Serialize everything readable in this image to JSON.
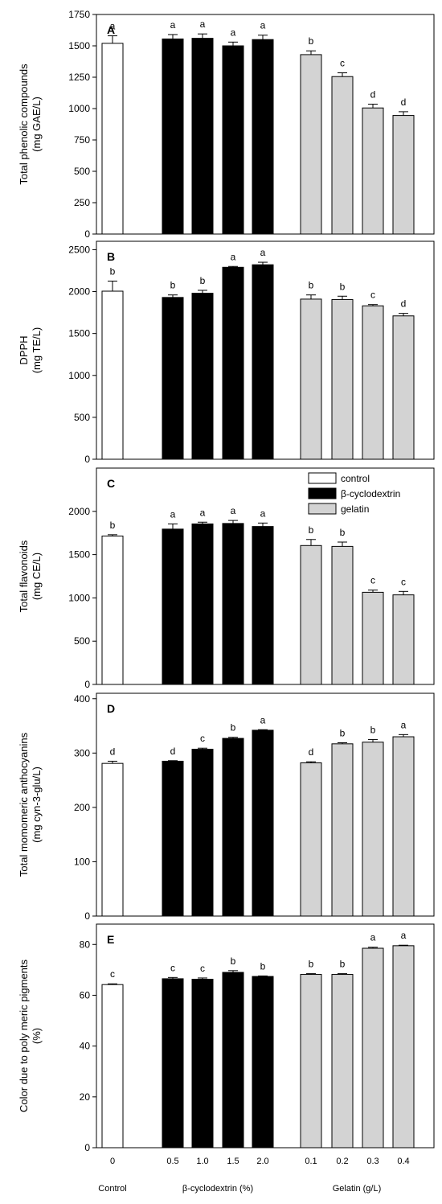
{
  "chart_data": [
    {
      "type": "bar",
      "panel_letter": "A",
      "ylabel": [
        "Total phenolic compounds",
        "(mg GAE/L)"
      ],
      "ylim": [
        0,
        1750
      ],
      "yticks": [
        0,
        250,
        500,
        750,
        1000,
        1250,
        1500,
        1750
      ],
      "values": [
        1520,
        1555,
        1560,
        1500,
        1550,
        1430,
        1255,
        1005,
        945
      ],
      "errors": [
        60,
        35,
        35,
        30,
        35,
        30,
        30,
        30,
        30
      ],
      "letters": [
        "a",
        "a",
        "a",
        "a",
        "a",
        "b",
        "c",
        "d",
        "d"
      ]
    },
    {
      "type": "bar",
      "panel_letter": "B",
      "ylabel": [
        "DPPH",
        "(mg TE/L)"
      ],
      "ylim": [
        0,
        2600
      ],
      "yticks": [
        0,
        500,
        1000,
        1500,
        2000,
        2500
      ],
      "values": [
        2005,
        1930,
        1980,
        2290,
        2320,
        1910,
        1905,
        1830,
        1710
      ],
      "errors": [
        120,
        30,
        35,
        10,
        30,
        50,
        40,
        15,
        30
      ],
      "letters": [
        "b",
        "b",
        "b",
        "a",
        "a",
        "b",
        "b",
        "c",
        "d"
      ]
    },
    {
      "type": "bar",
      "panel_letter": "C",
      "ylabel": [
        "Total flavonoids",
        "(mg CE/L)"
      ],
      "ylim": [
        0,
        2500
      ],
      "yticks": [
        0,
        500,
        1000,
        1500,
        2000
      ],
      "values": [
        1715,
        1795,
        1855,
        1860,
        1825,
        1605,
        1595,
        1065,
        1035
      ],
      "errors": [
        15,
        60,
        20,
        35,
        40,
        70,
        50,
        25,
        40
      ],
      "letters": [
        "b",
        "a",
        "a",
        "a",
        "a",
        "b",
        "b",
        "c",
        "c"
      ],
      "legend": [
        {
          "label": "control",
          "color": "#ffffff"
        },
        {
          "label": "β-cyclodextrin",
          "color": "#000000"
        },
        {
          "label": "gelatin",
          "color": "#d3d3d3"
        }
      ]
    },
    {
      "type": "bar",
      "panel_letter": "D",
      "ylabel": [
        "Total  momomeric  anthocyanins",
        "(mg cyn-3-glu/L)"
      ],
      "ylim": [
        0,
        410
      ],
      "yticks": [
        0,
        100,
        200,
        300,
        400
      ],
      "values": [
        281,
        285,
        307,
        327,
        342,
        282,
        317,
        320,
        330
      ],
      "errors": [
        4,
        1,
        2,
        2,
        1,
        2,
        2,
        5,
        4
      ],
      "letters": [
        "d",
        "d",
        "c",
        "b",
        "a",
        "d",
        "b",
        "b",
        "a"
      ]
    },
    {
      "type": "bar",
      "panel_letter": "E",
      "ylabel": [
        "Color due to poly meric pigments",
        "(%)"
      ],
      "ylim": [
        0,
        88
      ],
      "yticks": [
        0,
        20,
        40,
        60,
        80
      ],
      "values": [
        64.2,
        66.5,
        66.3,
        69.0,
        67.4,
        68.2,
        68.2,
        78.5,
        79.5
      ],
      "errors": [
        0.3,
        0.5,
        0.5,
        0.7,
        0.2,
        0.3,
        0.3,
        0.4,
        0.2
      ],
      "letters": [
        "c",
        "c",
        "c",
        "b",
        "b",
        "b",
        "b",
        "a",
        "a"
      ]
    }
  ],
  "x_tick_labels": [
    "0",
    "0.5",
    "1.0",
    "1.5",
    "2.0",
    "0.1",
    "0.2",
    "0.3",
    "0.4"
  ],
  "group_labels": [
    "Control",
    "β-cyclodextrin (%)",
    "Gelatin (g/L)"
  ],
  "bar_colors": [
    "#ffffff",
    "#000000",
    "#000000",
    "#000000",
    "#000000",
    "#d3d3d3",
    "#d3d3d3",
    "#d3d3d3",
    "#d3d3d3"
  ]
}
